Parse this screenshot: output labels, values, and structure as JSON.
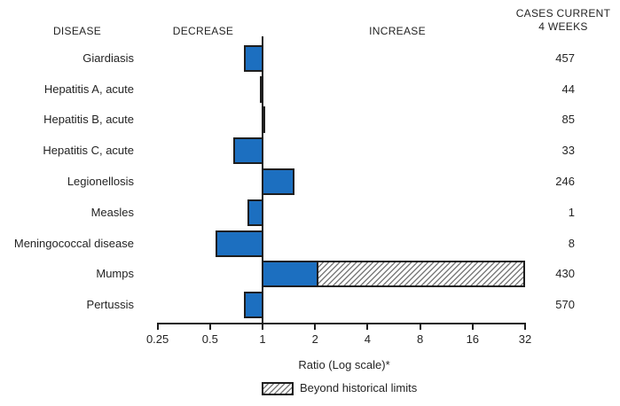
{
  "header": {
    "disease": "DISEASE",
    "decrease": "DECREASE",
    "increase": "INCREASE",
    "cases_current": "CASES CURRENT\n4 WEEKS"
  },
  "axis": {
    "title": "Ratio (Log scale)*",
    "tick_labels": [
      "0.25",
      "0.5",
      "1",
      "2",
      "4",
      "8",
      "16",
      "32"
    ]
  },
  "legend": {
    "beyond_label": "Beyond historical limits"
  },
  "colors": {
    "bar_fill": "#1c6fc0",
    "bar_border": "#1e1e1e",
    "text": "#242424"
  },
  "chart_data": {
    "type": "bar",
    "orientation": "horizontal",
    "scale": "log2",
    "title": "",
    "xlabel": "Ratio (Log scale)*",
    "xlim": [
      0.25,
      32
    ],
    "x_ticks": [
      0.25,
      0.5,
      1,
      2,
      4,
      8,
      16,
      32
    ],
    "baseline_ratio": 1,
    "value_column_header": "CASES CURRENT 4 WEEKS",
    "rows": [
      {
        "disease": "Giardiasis",
        "ratio": 0.78,
        "cases": "457"
      },
      {
        "disease": "Hepatitis A, acute",
        "ratio": 0.96,
        "cases": "44"
      },
      {
        "disease": "Hepatitis B, acute",
        "ratio": 0.99,
        "cases": "85"
      },
      {
        "disease": "Hepatitis C, acute",
        "ratio": 0.68,
        "cases": "33"
      },
      {
        "disease": "Legionellosis",
        "ratio": 1.52,
        "cases": "246"
      },
      {
        "disease": "Measles",
        "ratio": 0.82,
        "cases": "1"
      },
      {
        "disease": "Meningococcal disease",
        "ratio": 0.54,
        "cases": "8"
      },
      {
        "disease": "Mumps",
        "ratio": 32,
        "beyond_historical_limit_from": 2.1,
        "cases": "430"
      },
      {
        "disease": "Pertussis",
        "ratio": 0.78,
        "cases": "570"
      }
    ],
    "legend": [
      {
        "label": "Beyond historical limits",
        "style": "hatched"
      }
    ]
  }
}
